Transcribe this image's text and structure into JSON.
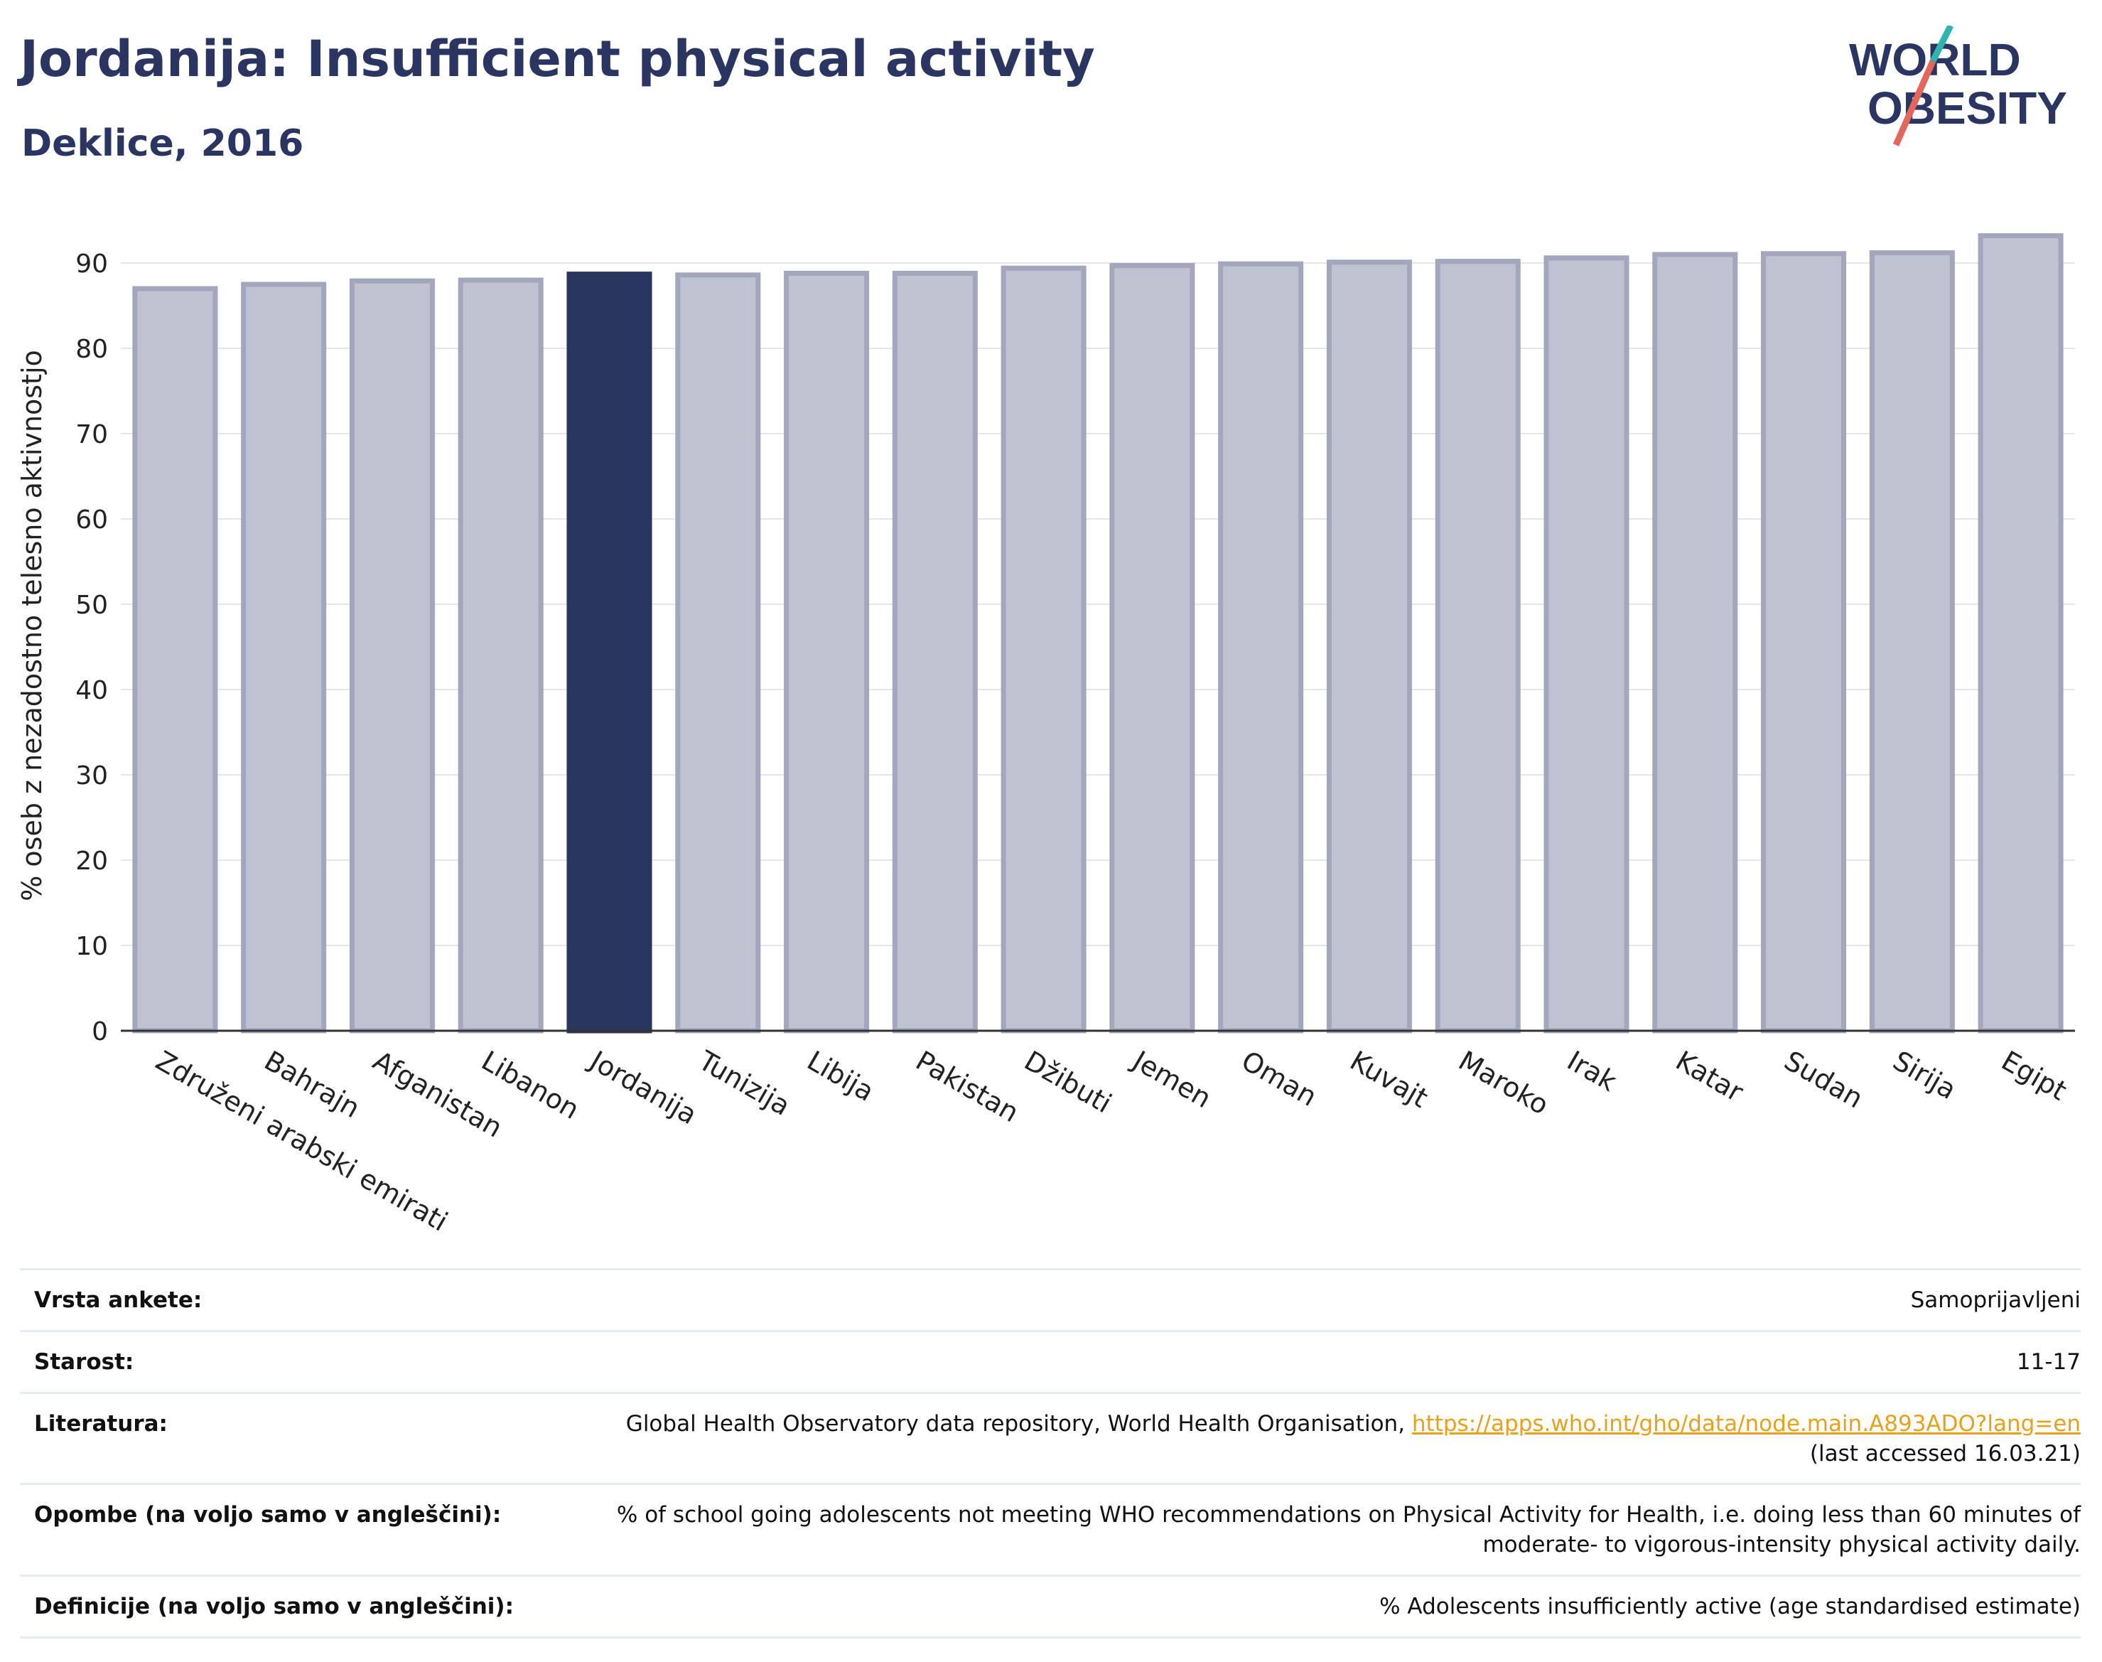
{
  "header": {
    "title": "Jordanija: Insufficient physical activity",
    "subtitle": "Deklice, 2016"
  },
  "logo": {
    "line1": "WORLD",
    "line2": "OBESITY"
  },
  "colors": {
    "highlight": "#2a3561",
    "bar": "#bfc2d0",
    "bar_border": "#a3a7bd",
    "accent_teal": "#2fb5b0",
    "accent_red": "#e4675b"
  },
  "chart_data": {
    "type": "bar",
    "title": "Jordanija: Insufficient physical activity",
    "subtitle": "Deklice, 2016",
    "xlabel": "",
    "ylabel": "% oseb z nezadostno telesno aktivnostjo",
    "ylim": [
      0,
      95
    ],
    "yticks": [
      0,
      10,
      20,
      30,
      40,
      50,
      60,
      70,
      80,
      90
    ],
    "grid": true,
    "highlight": "Jordanija",
    "categories": [
      "Združeni arabski emirati",
      "Bahrajn",
      "Afganistan",
      "Libanon",
      "Jordanija",
      "Tunizija",
      "Libija",
      "Pakistan",
      "Džibuti",
      "Jemen",
      "Oman",
      "Kuvajt",
      "Maroko",
      "Irak",
      "Katar",
      "Sudan",
      "Sirija",
      "Egipt"
    ],
    "values": [
      87.0,
      87.5,
      87.9,
      88.0,
      88.7,
      88.6,
      88.8,
      88.8,
      89.4,
      89.7,
      89.9,
      90.1,
      90.2,
      90.6,
      91.0,
      91.1,
      91.2,
      93.2
    ]
  },
  "meta": [
    {
      "label": "Vrsta ankete:",
      "value": "Samoprijavljeni"
    },
    {
      "label": "Starost:",
      "value": "11-17"
    },
    {
      "label": "Literatura:",
      "value": "Global Health Observatory data repository, World Health Organisation,",
      "link": "https://apps.who.int/gho/data/node.main.A893ADO?lang=en",
      "note": "(last accessed 16.03.21)"
    },
    {
      "label": "Opombe (na voljo samo v angleščini):",
      "value": "% of school going adolescents not meeting WHO recommendations on Physical Activity for Health, i.e. doing less than 60 minutes of",
      "value2": "moderate- to vigorous-intensity physical activity daily."
    },
    {
      "label": "Definicije (na voljo samo v angleščini):",
      "value": "% Adolescents insufficiently active (age standardised estimate)"
    }
  ]
}
